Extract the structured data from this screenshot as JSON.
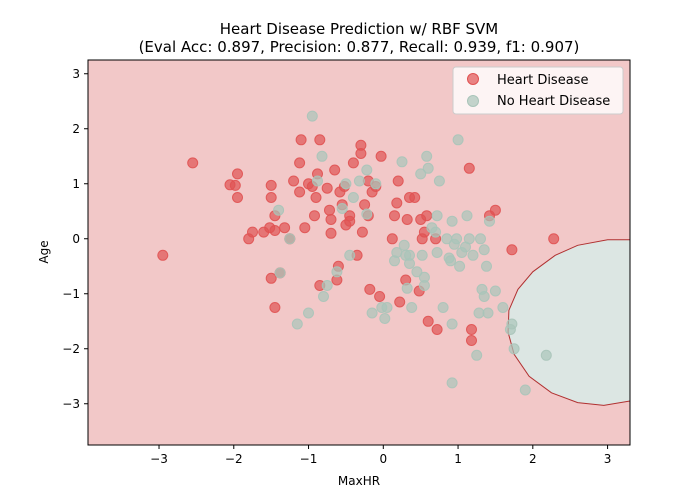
{
  "chart_data": {
    "type": "scatter",
    "title": "Heart Disease Prediction w/ RBF SVM",
    "subtitle": "(Eval Acc: 0.897, Precision: 0.877, Recall: 0.939, f1: 0.907)",
    "xlabel": "MaxHR",
    "ylabel": "Age",
    "xlim": [
      -3.95,
      3.3
    ],
    "ylim": [
      -3.75,
      3.25
    ],
    "xticks": [
      -3,
      -2,
      -1,
      0,
      1,
      2,
      3
    ],
    "yticks": [
      -3,
      -2,
      -1,
      0,
      1,
      2,
      3
    ],
    "legend_position": "top-right",
    "background_region": {
      "label": "Heart Disease region",
      "color": "#f2c8c8"
    },
    "decision_region": {
      "color": "#dce6e3",
      "boundary_color": "#b03030",
      "boundary": [
        [
          3.3,
          -0.02
        ],
        [
          3.0,
          -0.02
        ],
        [
          2.6,
          -0.12
        ],
        [
          2.3,
          -0.3
        ],
        [
          2.0,
          -0.6
        ],
        [
          1.8,
          -0.92
        ],
        [
          1.68,
          -1.3
        ],
        [
          1.67,
          -1.7
        ],
        [
          1.75,
          -2.1
        ],
        [
          1.95,
          -2.5
        ],
        [
          2.25,
          -2.8
        ],
        [
          2.6,
          -2.98
        ],
        [
          2.95,
          -3.03
        ],
        [
          3.3,
          -2.95
        ]
      ]
    },
    "series": [
      {
        "name": "Heart Disease",
        "color": "#e05252",
        "points": [
          [
            -2.95,
            -0.3
          ],
          [
            -2.55,
            1.38
          ],
          [
            -2.05,
            0.98
          ],
          [
            -1.95,
            1.18
          ],
          [
            -1.98,
            0.97
          ],
          [
            -1.95,
            0.75
          ],
          [
            -1.8,
            0.0
          ],
          [
            -1.75,
            0.12
          ],
          [
            -1.6,
            0.12
          ],
          [
            -1.52,
            0.2
          ],
          [
            -1.5,
            0.97
          ],
          [
            -1.5,
            0.75
          ],
          [
            -1.45,
            0.42
          ],
          [
            -1.45,
            0.15
          ],
          [
            -1.5,
            -0.72
          ],
          [
            -1.45,
            -1.25
          ],
          [
            -1.38,
            -0.62
          ],
          [
            -1.32,
            0.2
          ],
          [
            -1.25,
            0.0
          ],
          [
            -1.2,
            1.05
          ],
          [
            -1.12,
            1.38
          ],
          [
            -1.12,
            0.85
          ],
          [
            -1.1,
            1.8
          ],
          [
            -1.05,
            0.2
          ],
          [
            -1.0,
            1.0
          ],
          [
            -0.95,
            0.95
          ],
          [
            -0.9,
            0.75
          ],
          [
            -0.92,
            0.42
          ],
          [
            -0.88,
            1.18
          ],
          [
            -0.85,
            1.8
          ],
          [
            -0.85,
            -0.85
          ],
          [
            -0.75,
            0.92
          ],
          [
            -0.72,
            0.52
          ],
          [
            -0.7,
            0.35
          ],
          [
            -0.7,
            0.1
          ],
          [
            -0.65,
            1.25
          ],
          [
            -0.62,
            -0.75
          ],
          [
            -0.6,
            -0.5
          ],
          [
            -0.58,
            0.85
          ],
          [
            -0.55,
            0.62
          ],
          [
            -0.52,
            0.95
          ],
          [
            -0.5,
            0.25
          ],
          [
            -0.45,
            0.42
          ],
          [
            -0.45,
            0.32
          ],
          [
            -0.4,
            1.38
          ],
          [
            -0.35,
            -0.3
          ],
          [
            -0.3,
            1.7
          ],
          [
            -0.3,
            1.55
          ],
          [
            -0.28,
            0.12
          ],
          [
            -0.25,
            0.62
          ],
          [
            -0.2,
            1.05
          ],
          [
            -0.2,
            0.42
          ],
          [
            -0.18,
            -0.92
          ],
          [
            -0.15,
            0.85
          ],
          [
            -0.1,
            0.95
          ],
          [
            -0.05,
            -1.05
          ],
          [
            -0.03,
            1.5
          ],
          [
            0.12,
            0.0
          ],
          [
            0.15,
            0.42
          ],
          [
            0.18,
            0.65
          ],
          [
            0.2,
            1.05
          ],
          [
            0.22,
            -1.15
          ],
          [
            0.3,
            -0.75
          ],
          [
            0.32,
            0.35
          ],
          [
            0.35,
            0.75
          ],
          [
            0.42,
            0.75
          ],
          [
            0.48,
            -0.95
          ],
          [
            0.5,
            0.35
          ],
          [
            0.52,
            0.0
          ],
          [
            0.55,
            0.12
          ],
          [
            0.58,
            0.42
          ],
          [
            0.6,
            -1.5
          ],
          [
            0.7,
            0.0
          ],
          [
            0.72,
            -1.65
          ],
          [
            1.15,
            1.28
          ],
          [
            1.18,
            -1.65
          ],
          [
            1.18,
            -1.85
          ],
          [
            1.42,
            0.42
          ],
          [
            1.5,
            0.52
          ],
          [
            1.72,
            -0.2
          ],
          [
            2.28,
            0.0
          ]
        ]
      },
      {
        "name": "No Heart Disease",
        "color": "#a9c4b9",
        "points": [
          [
            -1.4,
            0.52
          ],
          [
            -1.38,
            -0.62
          ],
          [
            -1.25,
            -0.0
          ],
          [
            -1.15,
            -1.55
          ],
          [
            -1.0,
            -1.35
          ],
          [
            -0.95,
            2.23
          ],
          [
            -0.88,
            1.05
          ],
          [
            -0.82,
            1.5
          ],
          [
            -0.8,
            -1.05
          ],
          [
            -0.75,
            -0.85
          ],
          [
            -0.62,
            -0.6
          ],
          [
            -0.55,
            0.55
          ],
          [
            -0.5,
            1.0
          ],
          [
            -0.45,
            -0.3
          ],
          [
            -0.4,
            0.75
          ],
          [
            -0.32,
            1.05
          ],
          [
            -0.22,
            1.25
          ],
          [
            -0.22,
            0.45
          ],
          [
            -0.15,
            -1.35
          ],
          [
            -0.1,
            1.0
          ],
          [
            -0.02,
            -1.25
          ],
          [
            0.02,
            -1.45
          ],
          [
            0.05,
            -1.25
          ],
          [
            0.15,
            -0.4
          ],
          [
            0.18,
            -0.25
          ],
          [
            0.25,
            1.4
          ],
          [
            0.28,
            -0.12
          ],
          [
            0.3,
            -0.3
          ],
          [
            0.32,
            -0.9
          ],
          [
            0.35,
            -0.45
          ],
          [
            0.35,
            -0.3
          ],
          [
            0.38,
            -1.25
          ],
          [
            0.45,
            -0.6
          ],
          [
            0.5,
            1.18
          ],
          [
            0.52,
            -0.3
          ],
          [
            0.55,
            -0.7
          ],
          [
            0.55,
            -0.85
          ],
          [
            0.58,
            1.5
          ],
          [
            0.6,
            1.28
          ],
          [
            0.65,
            0.2
          ],
          [
            0.7,
            0.12
          ],
          [
            0.72,
            0.42
          ],
          [
            0.72,
            -0.25
          ],
          [
            0.75,
            1.05
          ],
          [
            0.8,
            -1.25
          ],
          [
            0.85,
            0.0
          ],
          [
            0.88,
            -0.35
          ],
          [
            0.9,
            -0.4
          ],
          [
            0.92,
            0.32
          ],
          [
            0.92,
            -1.55
          ],
          [
            0.95,
            -0.1
          ],
          [
            0.98,
            0.0
          ],
          [
            1.0,
            1.8
          ],
          [
            1.02,
            -0.5
          ],
          [
            1.05,
            -0.25
          ],
          [
            1.1,
            -0.15
          ],
          [
            1.12,
            0.42
          ],
          [
            1.15,
            0.0
          ],
          [
            1.2,
            -0.3
          ],
          [
            1.25,
            -2.12
          ],
          [
            1.28,
            -1.35
          ],
          [
            1.3,
            0.0
          ],
          [
            1.32,
            -0.92
          ],
          [
            1.35,
            -1.05
          ],
          [
            1.35,
            -0.2
          ],
          [
            1.38,
            -0.5
          ],
          [
            1.4,
            -1.35
          ],
          [
            1.42,
            0.32
          ],
          [
            1.5,
            -0.95
          ],
          [
            1.6,
            -1.25
          ],
          [
            1.7,
            -1.65
          ],
          [
            1.72,
            -1.55
          ],
          [
            1.75,
            -2.0
          ],
          [
            1.9,
            -2.75
          ],
          [
            0.92,
            -2.62
          ],
          [
            2.18,
            -2.12
          ]
        ]
      }
    ]
  }
}
